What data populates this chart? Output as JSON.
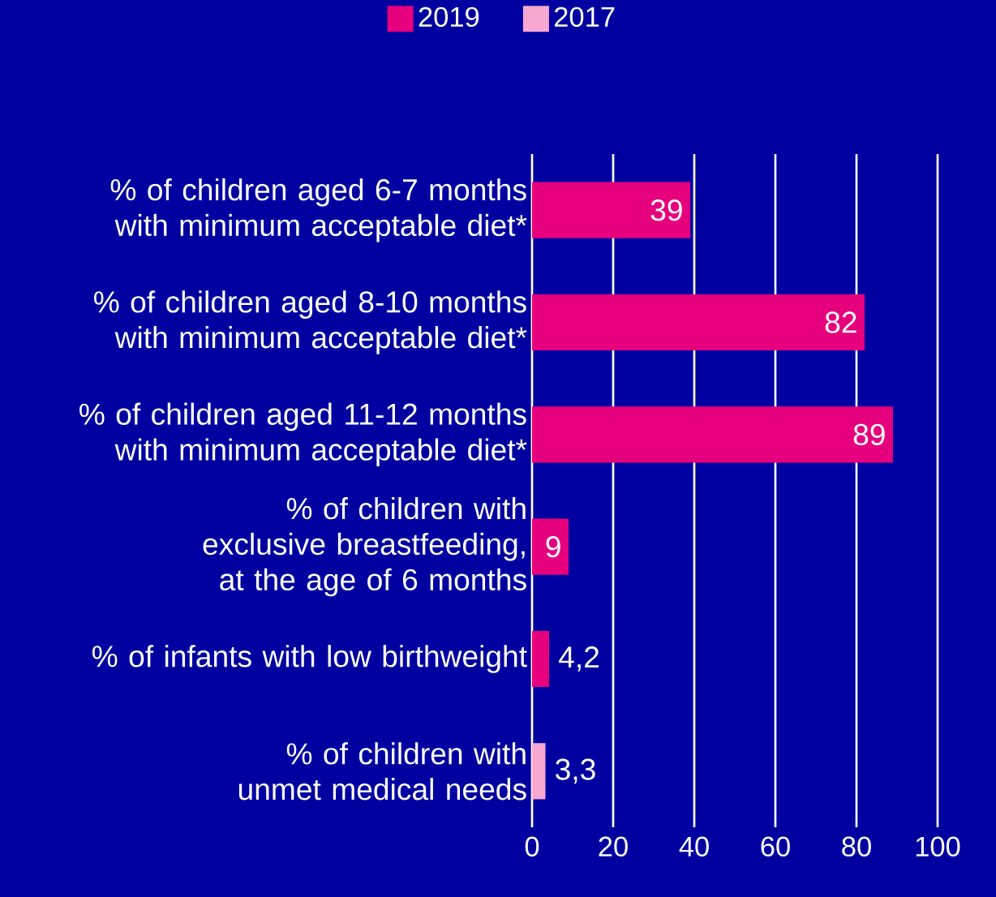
{
  "chart_data": {
    "type": "bar",
    "orientation": "horizontal",
    "categories": [
      "% of children aged 6-7 months with minimum acceptable diet*",
      "% of children aged 8-10 months with minimum acceptable diet*",
      "% of children aged 11-12 months with minimum acceptable diet*",
      "% of children with exclusive breastfeeding, at the age of 6 months",
      "% of infants with low birthweight",
      "% of children with unmet medical needs"
    ],
    "series": [
      {
        "name": "2019",
        "color": "#e6007e",
        "values": [
          39,
          82,
          89,
          9,
          4.2,
          null
        ],
        "value_labels": [
          "39",
          "82",
          "89",
          "9",
          "4,2",
          null
        ]
      },
      {
        "name": "2017",
        "color": "#f7a8d0",
        "values": [
          null,
          null,
          null,
          null,
          null,
          3.3
        ],
        "value_labels": [
          null,
          null,
          null,
          null,
          null,
          "3,3"
        ]
      }
    ],
    "xlim": [
      0,
      100
    ],
    "xticks": [
      0,
      20,
      40,
      60,
      80,
      100
    ],
    "grid": "x",
    "legend": "top"
  }
}
